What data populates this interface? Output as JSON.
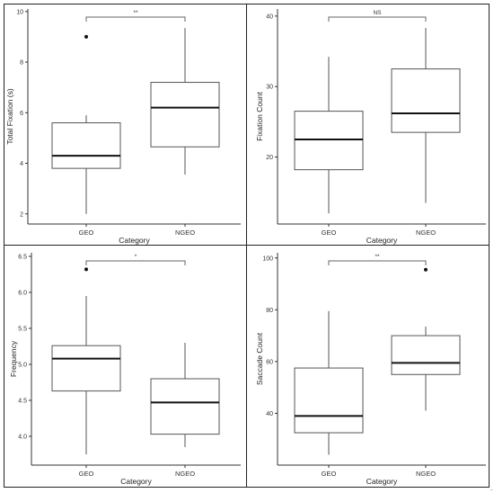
{
  "trailing_mark": ".",
  "chart_data": [
    {
      "type": "boxplot",
      "ylabel": "Total Fixation (s)",
      "xlabel": "Category",
      "categories": [
        "GEO",
        "NGEO"
      ],
      "ylim": [
        1.6,
        10.1
      ],
      "yticks": [
        2,
        4,
        6,
        8,
        10
      ],
      "grid": false,
      "boxes": [
        {
          "category": "GEO",
          "whisker_low": 2.0,
          "q1": 3.8,
          "median": 4.3,
          "q3": 5.6,
          "whisker_high": 5.9,
          "outliers": [
            9.0
          ]
        },
        {
          "category": "NGEO",
          "whisker_low": 3.55,
          "q1": 4.65,
          "median": 6.2,
          "q3": 7.2,
          "whisker_high": 9.35,
          "outliers": []
        }
      ],
      "significance": "**"
    },
    {
      "type": "boxplot",
      "ylabel": "Fixation Count",
      "xlabel": "Category",
      "categories": [
        "GEO",
        "NGEO"
      ],
      "ylim": [
        10.5,
        41
      ],
      "yticks": [
        20,
        30,
        40
      ],
      "grid": false,
      "boxes": [
        {
          "category": "GEO",
          "whisker_low": 12,
          "q1": 18.2,
          "median": 22.5,
          "q3": 26.5,
          "whisker_high": 34.2,
          "outliers": []
        },
        {
          "category": "NGEO",
          "whisker_low": 13.5,
          "q1": 23.5,
          "median": 26.2,
          "q3": 32.5,
          "whisker_high": 38.3,
          "outliers": []
        }
      ],
      "significance": "NS"
    },
    {
      "type": "boxplot",
      "ylabel": "Frequency",
      "xlabel": "Category",
      "categories": [
        "GEO",
        "NGEO"
      ],
      "ylim": [
        3.6,
        6.55
      ],
      "yticks": [
        4.0,
        4.5,
        5.0,
        5.5,
        6.0,
        6.5
      ],
      "tick_labels": [
        "4.0",
        "4.5",
        "5.0",
        "5.5",
        "6.0",
        "6.5"
      ],
      "grid": false,
      "boxes": [
        {
          "category": "GEO",
          "whisker_low": 3.75,
          "q1": 4.63,
          "median": 5.08,
          "q3": 5.26,
          "whisker_high": 5.95,
          "outliers": [
            6.32
          ]
        },
        {
          "category": "NGEO",
          "whisker_low": 3.85,
          "q1": 4.03,
          "median": 4.47,
          "q3": 4.8,
          "whisker_high": 5.3,
          "outliers": []
        }
      ],
      "significance": "*"
    },
    {
      "type": "boxplot",
      "ylabel": "Saccade Count",
      "xlabel": "Category",
      "categories": [
        "GEO",
        "NGEO"
      ],
      "ylim": [
        20,
        102
      ],
      "yticks": [
        40,
        60,
        80,
        100
      ],
      "grid": false,
      "boxes": [
        {
          "category": "GEO",
          "whisker_low": 24,
          "q1": 32.5,
          "median": 39,
          "q3": 57.5,
          "whisker_high": 79.5,
          "outliers": []
        },
        {
          "category": "NGEO",
          "whisker_low": 41,
          "q1": 55,
          "median": 59.5,
          "q3": 70,
          "whisker_high": 73.5,
          "outliers": [
            95.5
          ]
        }
      ],
      "significance": "**"
    }
  ]
}
